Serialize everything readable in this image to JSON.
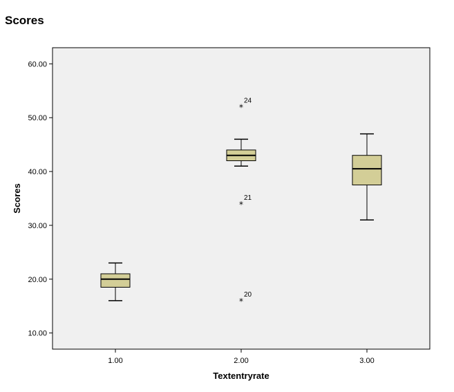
{
  "chart_data": {
    "type": "boxplot",
    "title": "Scores",
    "xlabel": "Textentryrate",
    "ylabel": "Scores",
    "ylim": [
      7,
      63
    ],
    "yticks": [
      "10.00",
      "20.00",
      "30.00",
      "40.00",
      "50.00",
      "60.00"
    ],
    "ytick_values": [
      10,
      20,
      30,
      40,
      50,
      60
    ],
    "grid": false,
    "plot_background": "#f0f0f0",
    "box_color": "#d3ce97",
    "categories": [
      "1.00",
      "2.00",
      "3.00"
    ],
    "boxes": [
      {
        "category": "1.00",
        "min": 16,
        "q1": 18.5,
        "median": 20,
        "q3": 21,
        "max": 23,
        "outliers": []
      },
      {
        "category": "2.00",
        "min": 41,
        "q1": 42,
        "median": 43,
        "q3": 44,
        "max": 46,
        "outliers": [
          {
            "value": 52,
            "label": "24"
          },
          {
            "value": 34,
            "label": "21"
          },
          {
            "value": 16,
            "label": "20"
          }
        ]
      },
      {
        "category": "3.00",
        "min": 31,
        "q1": 37.5,
        "median": 40.5,
        "q3": 43,
        "max": 47,
        "outliers": []
      }
    ]
  }
}
